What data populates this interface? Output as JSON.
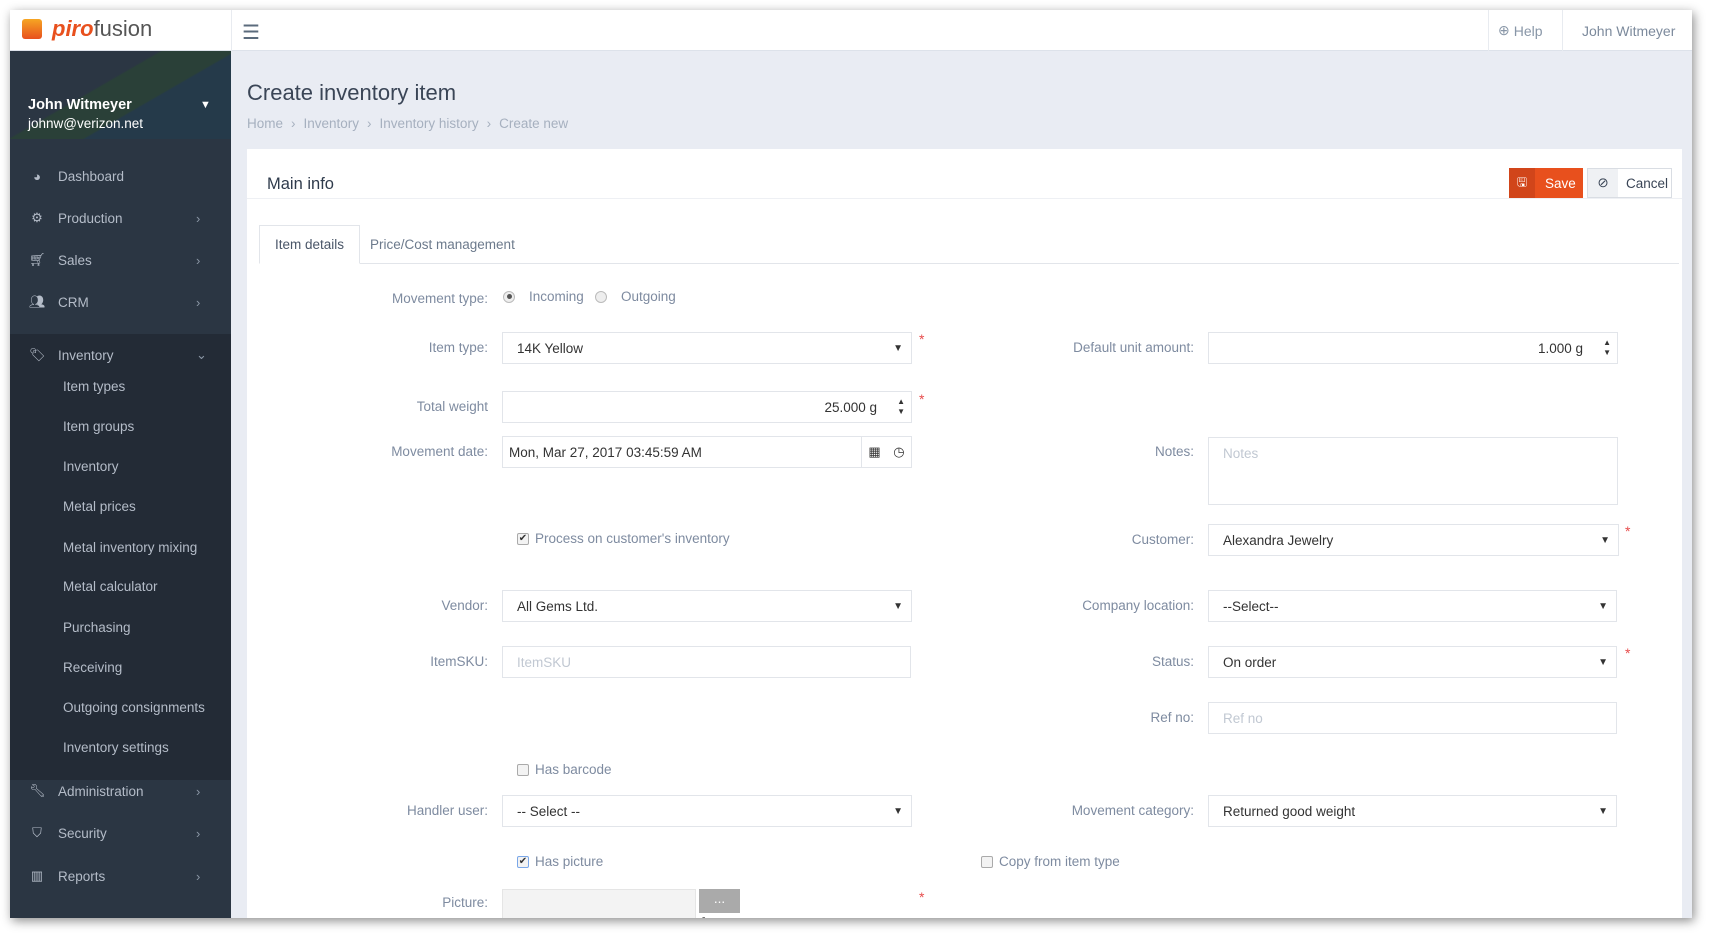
{
  "header": {
    "brand_left": "piro",
    "brand_right": "fusion",
    "help": "Help",
    "user": "John Witmeyer"
  },
  "sidebar": {
    "user_name": "John Witmeyer",
    "user_email": "johnw@verizon.net",
    "items": [
      {
        "label": "Dashboard",
        "icon": "dashboard-icon"
      },
      {
        "label": "Production",
        "icon": "cogs-icon"
      },
      {
        "label": "Sales",
        "icon": "cart-icon"
      },
      {
        "label": "CRM",
        "icon": "users-icon"
      },
      {
        "label": "Inventory",
        "icon": "tag-icon"
      },
      {
        "label": "Administration",
        "icon": "wrench-icon"
      },
      {
        "label": "Security",
        "icon": "shield-icon"
      },
      {
        "label": "Reports",
        "icon": "bar-chart-icon"
      }
    ],
    "inventory_sub": [
      "Item types",
      "Item groups",
      "Inventory",
      "Metal prices",
      "Metal inventory mixing",
      "Metal calculator",
      "Purchasing",
      "Receiving",
      "Outgoing consignments",
      "Inventory settings"
    ]
  },
  "page": {
    "title": "Create inventory item",
    "breadcrumb": [
      "Home",
      "Inventory",
      "Inventory history",
      "Create new"
    ]
  },
  "panel": {
    "title": "Main info",
    "save": "Save",
    "cancel": "Cancel",
    "tabs": [
      "Item details",
      "Price/Cost management"
    ]
  },
  "form": {
    "movement_type": {
      "label": "Movement type:",
      "options": [
        "Incoming",
        "Outgoing"
      ],
      "selected": "Incoming"
    },
    "item_type": {
      "label": "Item type:",
      "value": "14K Yellow"
    },
    "total_weight": {
      "label": "Total weight",
      "value": "25.000 g"
    },
    "movement_date": {
      "label": "Movement date:",
      "value": "Mon, Mar 27, 2017 03:45:59 AM"
    },
    "process_customer": {
      "label": "Process on customer's inventory",
      "checked": true
    },
    "vendor": {
      "label": "Vendor:",
      "value": "All Gems Ltd."
    },
    "item_sku": {
      "label": "ItemSKU:",
      "placeholder": "ItemSKU"
    },
    "has_barcode": {
      "label": "Has barcode",
      "checked": false
    },
    "handler_user": {
      "label": "Handler user:",
      "value": "-- Select --"
    },
    "has_picture": {
      "label": "Has picture",
      "checked": true
    },
    "picture": {
      "label": "Picture:",
      "browse": "..."
    },
    "default_unit_amount": {
      "label": "Default unit amount:",
      "value": "1.000 g"
    },
    "notes": {
      "label": "Notes:",
      "placeholder": "Notes"
    },
    "customer": {
      "label": "Customer:",
      "value": "Alexandra Jewelry"
    },
    "company_location": {
      "label": "Company location:",
      "value": "--Select--"
    },
    "status": {
      "label": "Status:",
      "value": "On order"
    },
    "ref_no": {
      "label": "Ref no:",
      "placeholder": "Ref no"
    },
    "movement_category": {
      "label": "Movement category:",
      "value": "Returned good weight"
    },
    "copy_from_item_type": {
      "label": "Copy from item type",
      "checked": false
    }
  },
  "colors": {
    "accent": "#e8501d",
    "sidebar": "#2b3643"
  }
}
